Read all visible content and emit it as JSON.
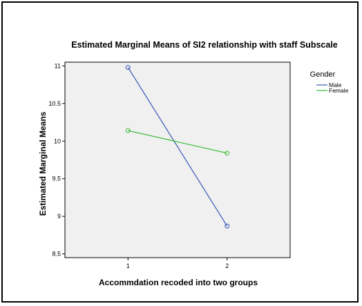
{
  "chart_data": {
    "type": "line",
    "title": "Estimated Marginal Means of SI2 relationship with staff Subscale",
    "xlabel": "Accommdation recoded into two groups",
    "ylabel": "Estimated Marginal Means",
    "categories": [
      "1",
      "2"
    ],
    "yticks": [
      "8.5",
      "9",
      "9.5",
      "10",
      "10.5",
      "11"
    ],
    "ylim": [
      8.45,
      11.05
    ],
    "legend_title": "Gender",
    "legend_position": "right",
    "grid": false,
    "series": [
      {
        "name": "Male",
        "values": [
          10.98,
          8.87
        ],
        "color": "#3a56b4"
      },
      {
        "name": "Female",
        "values": [
          10.14,
          9.84
        ],
        "color": "#33bb33"
      }
    ],
    "plot_background": "#f0f0f0"
  }
}
